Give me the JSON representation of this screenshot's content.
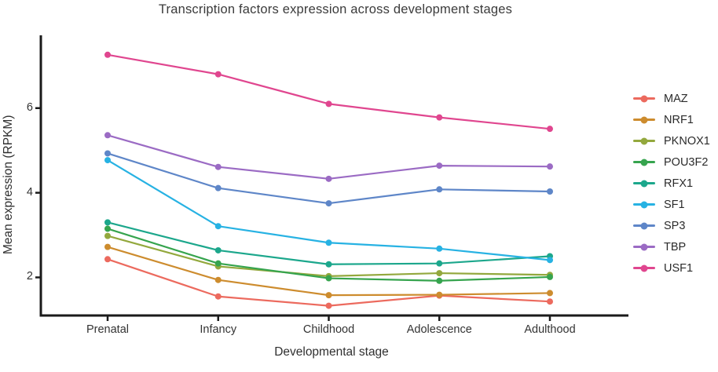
{
  "chart_data": {
    "type": "line",
    "title": "Transcription factors expression across development stages",
    "xlabel": "Developmental stage",
    "ylabel": "Mean expression (RPKM)",
    "categories": [
      "Prenatal",
      "Infancy",
      "Childhood",
      "Adolescence",
      "Adulthood"
    ],
    "series": [
      {
        "name": "MAZ",
        "color": "#EC6A5E",
        "values": [
          2.43,
          1.55,
          1.33,
          1.57,
          1.43
        ]
      },
      {
        "name": "NRF1",
        "color": "#CD8C2E",
        "values": [
          2.72,
          1.94,
          1.58,
          1.59,
          1.63
        ]
      },
      {
        "name": "PKNOX1",
        "color": "#93A83D",
        "values": [
          2.98,
          2.26,
          2.03,
          2.1,
          2.06
        ]
      },
      {
        "name": "POU3F2",
        "color": "#36A44E",
        "values": [
          3.15,
          2.33,
          1.98,
          1.92,
          2.01
        ]
      },
      {
        "name": "RFX1",
        "color": "#1CA78C",
        "values": [
          3.3,
          2.64,
          2.31,
          2.33,
          2.5
        ]
      },
      {
        "name": "SF1",
        "color": "#27B2E3",
        "values": [
          4.77,
          3.21,
          2.82,
          2.68,
          2.41
        ]
      },
      {
        "name": "SP3",
        "color": "#5E86C8",
        "values": [
          4.93,
          4.11,
          3.75,
          4.08,
          4.03
        ]
      },
      {
        "name": "TBP",
        "color": "#9B6BC4",
        "values": [
          5.36,
          4.61,
          4.33,
          4.64,
          4.62
        ]
      },
      {
        "name": "USF1",
        "color": "#E0468F",
        "values": [
          7.26,
          6.8,
          6.1,
          5.78,
          5.51
        ]
      }
    ],
    "yticks": [
      2,
      4,
      6
    ],
    "ylim": [
      1.1,
      7.72
    ],
    "grid": false,
    "marker": "circle",
    "legend_position": "right",
    "axis_color": "#1a1a1a"
  }
}
